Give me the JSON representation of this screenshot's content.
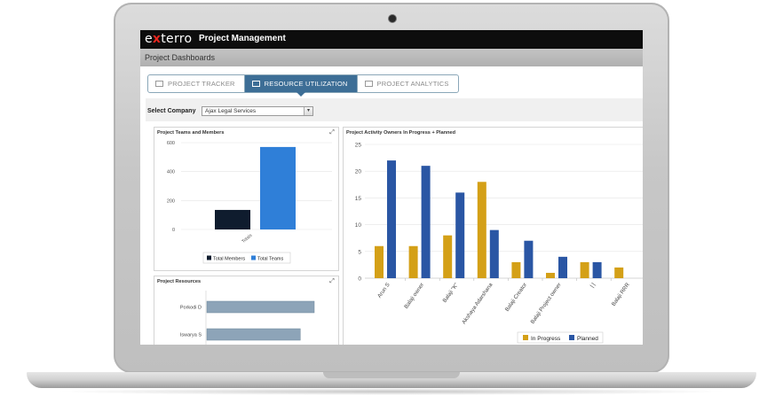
{
  "app": {
    "logo_prefix": "e",
    "logo_x": "x",
    "logo_suffix": "terro",
    "title": "Project Management",
    "subtitle": "Project Dashboards"
  },
  "tabs": [
    {
      "label": "PROJECT TRACKER",
      "active": false
    },
    {
      "label": "RESOURCE UTILIZATION",
      "active": true
    },
    {
      "label": "PROJECT ANALYTICS",
      "active": false
    }
  ],
  "filter": {
    "label": "Select Company",
    "value": "Ajax Legal Services"
  },
  "icons": {
    "expand": "expand-icon",
    "dropdown": "chevron-down-icon"
  },
  "colors": {
    "tab_active": "#3d6e96",
    "members": "#0f1c2e",
    "teams": "#2f7fd8",
    "in_progress": "#d4a017",
    "planned": "#2a56a4",
    "resources_bar": "#8da4b8"
  },
  "chart_data": [
    {
      "type": "bar",
      "title": "Project Teams and Members",
      "categories": [
        "Totals"
      ],
      "series": [
        {
          "name": "Total Members",
          "values": [
            135
          ]
        },
        {
          "name": "Total Teams",
          "values": [
            570
          ]
        }
      ],
      "yticks": [
        0,
        200,
        400,
        600
      ],
      "ylim": [
        0,
        600
      ],
      "legend": "bottom"
    },
    {
      "type": "bar",
      "title": "Project Activity Owners In Progress + Planned",
      "categories": [
        "Arun S",
        "Balaji owner",
        "Balaji \"K\"",
        "Akshaya Adarshana",
        "Balaji Creator",
        "Balaji Project owner",
        "| |",
        "Balaji RRR"
      ],
      "series": [
        {
          "name": "In Progress",
          "values": [
            6,
            6,
            8,
            18,
            3,
            1,
            3,
            2
          ]
        },
        {
          "name": "Planned",
          "values": [
            22,
            21,
            16,
            9,
            7,
            4,
            3,
            0
          ]
        }
      ],
      "yticks": [
        0,
        5,
        10,
        15,
        20,
        25
      ],
      "ylim": [
        0,
        25
      ],
      "legend": "bottom"
    },
    {
      "type": "bar",
      "orientation": "horizontal",
      "title": "Project Resources",
      "categories": [
        "Porkodi D",
        "Iswarya S"
      ],
      "values": [
        100,
        87
      ]
    }
  ]
}
